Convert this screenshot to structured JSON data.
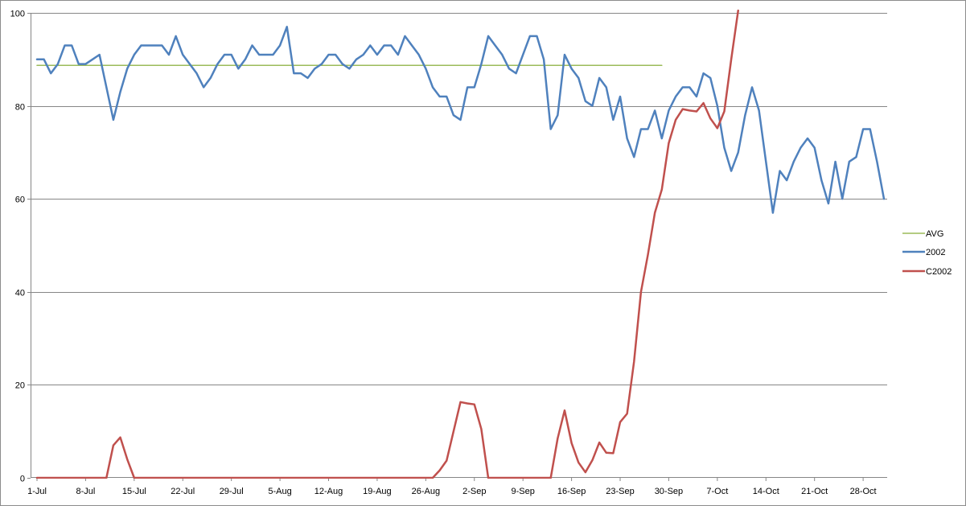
{
  "chart_data": {
    "type": "line",
    "title": "",
    "xlabel": "",
    "ylabel": "",
    "ylim": [
      0,
      100
    ],
    "y_ticks": [
      0,
      20,
      40,
      60,
      80,
      100
    ],
    "grid": "horizontal",
    "legend_position": "right",
    "x_ticks": [
      {
        "label": "1-Jul",
        "index": 0
      },
      {
        "label": "8-Jul",
        "index": 7
      },
      {
        "label": "15-Jul",
        "index": 14
      },
      {
        "label": "22-Jul",
        "index": 21
      },
      {
        "label": "29-Jul",
        "index": 28
      },
      {
        "label": "5-Aug",
        "index": 35
      },
      {
        "label": "12-Aug",
        "index": 42
      },
      {
        "label": "19-Aug",
        "index": 49
      },
      {
        "label": "26-Aug",
        "index": 56
      },
      {
        "label": "2-Sep",
        "index": 63
      },
      {
        "label": "9-Sep",
        "index": 70
      },
      {
        "label": "16-Sep",
        "index": 77
      },
      {
        "label": "23-Sep",
        "index": 84
      },
      {
        "label": "30-Sep",
        "index": 91
      },
      {
        "label": "7-Oct",
        "index": 98
      },
      {
        "label": "14-Oct",
        "index": 105
      },
      {
        "label": "21-Oct",
        "index": 112
      },
      {
        "label": "28-Oct",
        "index": 119
      }
    ],
    "x_count": 123,
    "series": [
      {
        "name": "AVG",
        "color": "#9BBB59",
        "stroke_width": 1.5,
        "start_index": 0,
        "values": [
          88.7,
          88.7,
          88.7,
          88.7,
          88.7,
          88.7,
          88.7,
          88.7,
          88.7,
          88.7,
          88.7,
          88.7,
          88.7,
          88.7,
          88.7,
          88.7,
          88.7,
          88.7,
          88.7,
          88.7,
          88.7,
          88.7,
          88.7,
          88.7,
          88.7,
          88.7,
          88.7,
          88.7,
          88.7,
          88.7,
          88.7,
          88.7,
          88.7,
          88.7,
          88.7,
          88.7,
          88.7,
          88.7,
          88.7,
          88.7,
          88.7,
          88.7,
          88.7,
          88.7,
          88.7,
          88.7,
          88.7,
          88.7,
          88.7,
          88.7,
          88.7,
          88.7,
          88.7,
          88.7,
          88.7,
          88.7,
          88.7,
          88.7,
          88.7,
          88.7,
          88.7,
          88.7,
          88.7,
          88.7,
          88.7,
          88.7,
          88.7,
          88.7,
          88.7,
          88.7,
          88.7,
          88.7,
          88.7,
          88.7,
          88.7,
          88.7,
          88.7,
          88.7,
          88.7,
          88.7,
          88.7,
          88.7,
          88.7,
          88.7,
          88.7,
          88.7,
          88.7,
          88.7,
          88.7,
          88.7,
          88.7
        ]
      },
      {
        "name": "2002",
        "color": "#4F81BD",
        "stroke_width": 2.5,
        "start_index": 0,
        "values": [
          90,
          90,
          87,
          89,
          93,
          93,
          89,
          89,
          90,
          91,
          84,
          77,
          83,
          88,
          91,
          93,
          93,
          93,
          93,
          91,
          95,
          91,
          89,
          87,
          84,
          86,
          89,
          91,
          91,
          88,
          90,
          93,
          91,
          91,
          91,
          93,
          97,
          87,
          87,
          86,
          88,
          89,
          91,
          91,
          89,
          88,
          90,
          91,
          93,
          91,
          93,
          93,
          91,
          95,
          93,
          91,
          88,
          84,
          82,
          82,
          78,
          77,
          84,
          84,
          89,
          95,
          93,
          91,
          88,
          87,
          91,
          95,
          95,
          90,
          75,
          78,
          91,
          88,
          86,
          81,
          80,
          86,
          84,
          77,
          82,
          73,
          69,
          75,
          75,
          79,
          73,
          79,
          82,
          84,
          84,
          82,
          87,
          86,
          80,
          71,
          66,
          70,
          78,
          84,
          79,
          68,
          57,
          66,
          64,
          68,
          71,
          73,
          71,
          64,
          59,
          68,
          60,
          68,
          69,
          75,
          75,
          68,
          60
        ]
      },
      {
        "name": "C2002",
        "color": "#C0504D",
        "stroke_width": 2.5,
        "start_index": 0,
        "values": [
          0,
          0,
          0,
          0,
          0,
          0,
          0,
          0,
          0,
          0,
          0,
          7,
          8.7,
          4,
          0,
          0,
          0,
          0,
          0,
          0,
          0,
          0,
          0,
          0,
          0,
          0,
          0,
          0,
          0,
          0,
          0,
          0,
          0,
          0,
          0,
          0,
          0,
          0,
          0,
          0,
          0,
          0,
          0,
          0,
          0,
          0,
          0,
          0,
          0,
          0,
          0,
          0,
          0,
          0,
          0,
          0,
          0,
          0,
          1.6,
          3.7,
          10,
          16.3,
          16,
          15.8,
          10.5,
          0,
          0,
          0,
          0,
          0,
          0,
          0,
          0,
          0,
          0,
          8.5,
          14.5,
          7.5,
          3.3,
          1.2,
          3.8,
          7.6,
          5.4,
          5.3,
          12,
          13.8,
          25,
          40,
          48,
          57,
          62,
          72,
          77,
          79.3,
          79,
          78.8,
          80.6,
          77.3,
          75.2,
          78.8,
          90,
          100.5
        ]
      }
    ]
  }
}
